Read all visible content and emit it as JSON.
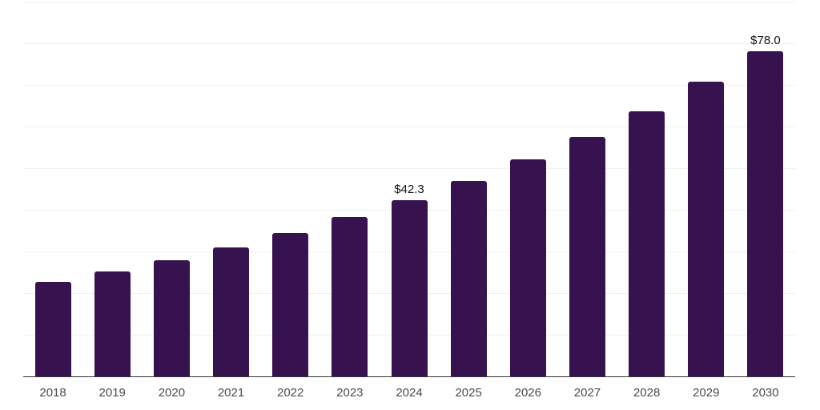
{
  "chart_data": {
    "type": "bar",
    "title": "",
    "xlabel": "",
    "ylabel": "",
    "categories": [
      "2018",
      "2019",
      "2020",
      "2021",
      "2022",
      "2023",
      "2024",
      "2025",
      "2026",
      "2027",
      "2028",
      "2029",
      "2030"
    ],
    "values": [
      22.7,
      25.1,
      27.9,
      31.0,
      34.4,
      38.2,
      42.3,
      46.9,
      52.1,
      57.5,
      63.6,
      70.8,
      78.0
    ],
    "data_labels": {
      "2024": "$42.3",
      "2030": "$78.0"
    },
    "ylim": [
      0,
      90
    ],
    "grid_step": 10,
    "grid": true,
    "legend_position": "none",
    "colors": {
      "bar": "#36124E",
      "gridline": "#F2F0F2",
      "axis_line": "#333333",
      "tick_label": "#4C4C4C",
      "value_label": "#141414",
      "background": "#FFFFFF"
    }
  }
}
